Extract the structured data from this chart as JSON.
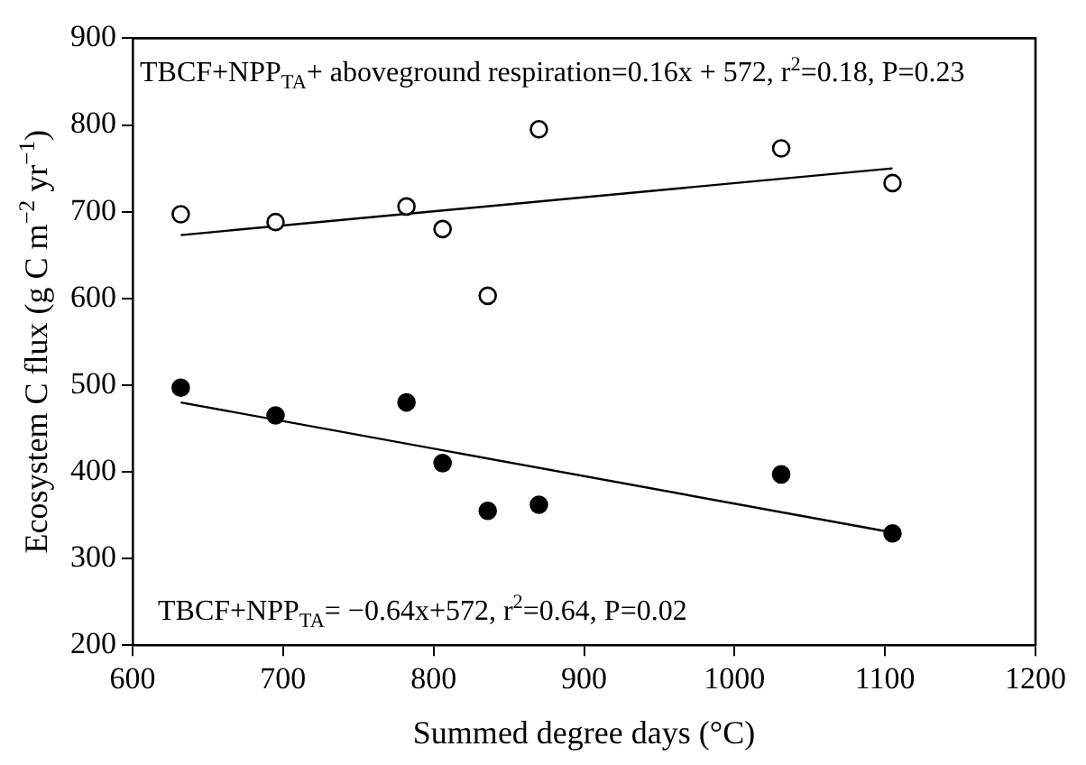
{
  "chart_data": {
    "type": "scatter",
    "xlabel": "Summed degree days (°C)",
    "ylabel": "Ecosystem C flux (g C m$^{−2}$ yr$^{−1}$)",
    "xlim": [
      600,
      1200
    ],
    "xticks": [
      600,
      700,
      800,
      900,
      1000,
      1100,
      1200
    ],
    "ylim": [
      200,
      900
    ],
    "yticks": [
      200,
      300,
      400,
      500,
      600,
      700,
      800,
      900
    ],
    "grid": false,
    "marker": "circle",
    "legend": false,
    "series": [
      {
        "type": "scatter",
        "color": "#000000",
        "x": [
          632,
          695,
          782,
          806,
          836,
          870,
          1031,
          1105
        ],
        "values": [
          697,
          688,
          706,
          680,
          603,
          795,
          773,
          733
        ]
      },
      {
        "type": "scatter",
        "color": "#000000",
        "x": [
          632,
          695,
          782,
          806,
          836,
          870,
          1031,
          1105
        ],
        "values": [
          497,
          465,
          480,
          410,
          355,
          362,
          397,
          329
        ]
      },
      {
        "type": "line",
        "color": "#000000",
        "marker": "none",
        "x": [
          632,
          1105
        ],
        "values": [
          673,
          750
        ]
      },
      {
        "type": "line",
        "color": "#000000",
        "marker": "none",
        "x": [
          632,
          1105
        ],
        "values": [
          480,
          330
        ]
      }
    ],
    "annotations": [
      "TBCF+NPP$_{TA}$+ aboveground respiration=0.16x + 572, r$^{2}$=0.18, P=0.23",
      "TBCF+NPP$_{TA}$= −0.64x+572, r$^{2}$=0.64, P=0.02"
    ]
  }
}
